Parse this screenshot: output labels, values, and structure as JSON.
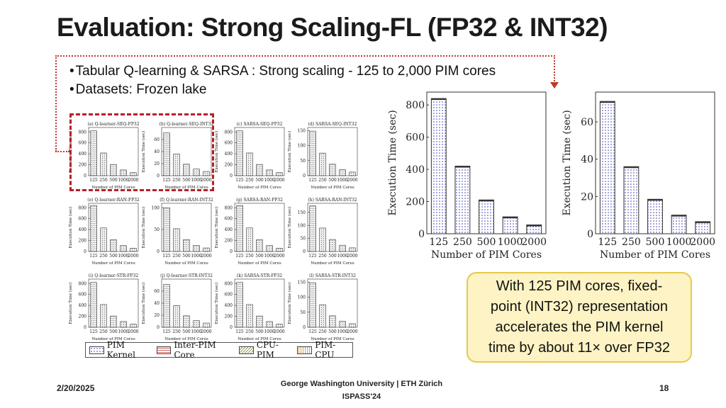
{
  "slide": {
    "title": "Evaluation: Strong Scaling-FL (FP32 & INT32)",
    "bullets": [
      "Tabular Q-learning & SARSA : Strong scaling - 125 to 2,000 PIM cores",
      "Datasets: Frozen lake"
    ],
    "callout": "With 125 PIM cores, fixed-point (INT32) representation accelerates the PIM kernel time by about 11× over FP32",
    "footer": {
      "date": "2/20/2025",
      "center_line1": "George Washington University | ETH Zürich",
      "center_line2": "ISPASS'24",
      "page": "18"
    }
  },
  "colors": {
    "title": "#1b1b1b",
    "accent_red": "#b3212a",
    "callout_bg": "#fdf3c4",
    "callout_border": "#e7c94a",
    "pim_kernel": "#3b3fb0"
  },
  "legend": [
    {
      "label": "PIM Kernel",
      "pattern": "dots"
    },
    {
      "label": "Inter-PIM Core",
      "pattern": "hlines"
    },
    {
      "label": "CPU-PIM",
      "pattern": "diag"
    },
    {
      "label": "PIM-CPU",
      "pattern": "vlines"
    }
  ],
  "chart_data": [
    {
      "type": "bar",
      "title": "Execution Time (sec)",
      "ylabel": "Execution Time (sec)",
      "xlabel": "Number of PIM Cores",
      "categories": [
        "125",
        "250",
        "500",
        "1000",
        "2000"
      ],
      "values": [
        840,
        420,
        210,
        105,
        55
      ],
      "ylim": [
        0,
        880
      ],
      "yticks": [
        0,
        200,
        400,
        600,
        800
      ]
    },
    {
      "type": "bar",
      "title": "Execution Time (sec)",
      "ylabel": "Execution Time (sec)",
      "xlabel": "Number of PIM Cores",
      "categories": [
        "125",
        "250",
        "500",
        "1000",
        "2000"
      ],
      "values": [
        71,
        36,
        18.5,
        10,
        6.5
      ],
      "ylim": [
        0,
        76
      ],
      "yticks": [
        0,
        20,
        40,
        60
      ]
    },
    {
      "type": "bar",
      "title": "(a) Q-learner-SEQ-FP32",
      "ylabel": "Execution Time (sec)",
      "xlabel": "Number of PIM Cores",
      "categories": [
        "125",
        "250",
        "500",
        "1000",
        "2000"
      ],
      "values": [
        820,
        415,
        205,
        105,
        55
      ],
      "ylim": [
        0,
        880
      ],
      "yticks": [
        0,
        200,
        400,
        600,
        800
      ]
    },
    {
      "type": "bar",
      "title": "(b) Q-learner-SEQ-INT32",
      "ylabel": "Execution Time (sec)",
      "xlabel": "Number of PIM Cores",
      "categories": [
        "125",
        "250",
        "500",
        "1000",
        "2000"
      ],
      "values": [
        71,
        36,
        19,
        11,
        7
      ],
      "ylim": [
        0,
        80
      ],
      "yticks": [
        0,
        20,
        40,
        60
      ]
    },
    {
      "type": "bar",
      "title": "(c) SARSA-SEQ-FP32",
      "ylabel": "Execution Time (sec)",
      "xlabel": "Number of PIM Cores",
      "categories": [
        "125",
        "250",
        "500",
        "1000",
        "2000"
      ],
      "values": [
        820,
        415,
        205,
        105,
        55
      ],
      "ylim": [
        0,
        880
      ],
      "yticks": [
        0,
        200,
        400,
        600,
        800
      ]
    },
    {
      "type": "bar",
      "title": "(d) SARSA-SEQ-INT32",
      "ylabel": "Execution Time (sec)",
      "xlabel": "Number of PIM Cores",
      "categories": [
        "125",
        "250",
        "500",
        "1000",
        "2000"
      ],
      "values": [
        148,
        75,
        38,
        20,
        12
      ],
      "ylim": [
        0,
        160
      ],
      "yticks": [
        0,
        50,
        100,
        150
      ]
    },
    {
      "type": "bar",
      "title": "(e) Q-learner-RAN-FP32",
      "ylabel": "Execution Time (sec)",
      "xlabel": "Number of PIM Cores",
      "categories": [
        "125",
        "250",
        "500",
        "1000",
        "2000"
      ],
      "values": [
        840,
        430,
        215,
        110,
        60
      ],
      "ylim": [
        0,
        880
      ],
      "yticks": [
        0,
        200,
        400,
        600,
        800
      ]
    },
    {
      "type": "bar",
      "title": "(f) Q-learner-RAN-INT32",
      "ylabel": "Execution Time (sec)",
      "xlabel": "Number of PIM Cores",
      "categories": [
        "125",
        "250",
        "500",
        "1000",
        "2000"
      ],
      "values": [
        100,
        52,
        27,
        14,
        8
      ],
      "ylim": [
        0,
        110
      ],
      "yticks": [
        0,
        50,
        100
      ]
    },
    {
      "type": "bar",
      "title": "(g) SARSA-RAN-FP32",
      "ylabel": "Execution Time (sec)",
      "xlabel": "Number of PIM Cores",
      "categories": [
        "125",
        "250",
        "500",
        "1000",
        "2000"
      ],
      "values": [
        840,
        430,
        215,
        110,
        60
      ],
      "ylim": [
        0,
        880
      ],
      "yticks": [
        0,
        200,
        400,
        600,
        800
      ]
    },
    {
      "type": "bar",
      "title": "(h) SARSA-RAN-INT32",
      "ylabel": "Execution Time (sec)",
      "xlabel": "Number of PIM Cores",
      "categories": [
        "125",
        "250",
        "500",
        "1000",
        "2000"
      ],
      "values": [
        175,
        90,
        46,
        24,
        14
      ],
      "ylim": [
        0,
        185
      ],
      "yticks": [
        0,
        50,
        100,
        150
      ]
    },
    {
      "type": "bar",
      "title": "(i) Q-learner-STR-FP32",
      "ylabel": "Execution Time (sec)",
      "xlabel": "Number of PIM Cores",
      "categories": [
        "125",
        "250",
        "500",
        "1000",
        "2000"
      ],
      "values": [
        820,
        415,
        205,
        105,
        55
      ],
      "ylim": [
        0,
        880
      ],
      "yticks": [
        0,
        200,
        400,
        600,
        800
      ]
    },
    {
      "type": "bar",
      "title": "(j) Q-learner-STR-INT32",
      "ylabel": "Execution Time (sec)",
      "xlabel": "Number of PIM Cores",
      "categories": [
        "125",
        "250",
        "500",
        "1000",
        "2000"
      ],
      "values": [
        71,
        36,
        19,
        11,
        7
      ],
      "ylim": [
        0,
        80
      ],
      "yticks": [
        0,
        20,
        40,
        60
      ]
    },
    {
      "type": "bar",
      "title": "(k) SARSA-STR-FP32",
      "ylabel": "Execution Time (sec)",
      "xlabel": "Number of PIM Cores",
      "categories": [
        "125",
        "250",
        "500",
        "1000",
        "2000"
      ],
      "values": [
        820,
        415,
        205,
        105,
        55
      ],
      "ylim": [
        0,
        880
      ],
      "yticks": [
        0,
        200,
        400,
        600,
        800
      ]
    },
    {
      "type": "bar",
      "title": "(l) SARSA-STR-INT32",
      "ylabel": "Execution Time (sec)",
      "xlabel": "Number of PIM Cores",
      "categories": [
        "125",
        "250",
        "500",
        "1000",
        "2000"
      ],
      "values": [
        148,
        75,
        38,
        20,
        12
      ],
      "ylim": [
        0,
        160
      ],
      "yticks": [
        0,
        50,
        100,
        150
      ]
    }
  ]
}
